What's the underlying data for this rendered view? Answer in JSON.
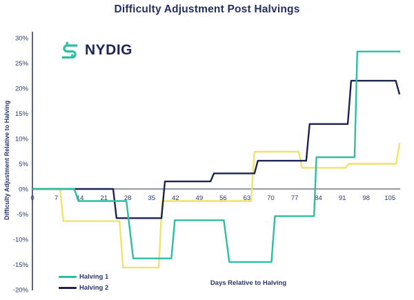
{
  "title": "Difficulty Adjustment Post Halvings",
  "logo": {
    "icon": "nydig-logo-icon",
    "text": "NYDIG"
  },
  "axes": {
    "y_label": "Difficulty Adjustment Relative to Halving",
    "x_label": "Days Relative to Halving",
    "y_tick_labels": [
      "30%",
      "25%",
      "20%",
      "15%",
      "10%",
      "5%",
      "0%",
      "-5%",
      "-10%",
      "-15%",
      "-20%"
    ],
    "x_tick_labels": [
      "0",
      "7",
      "14",
      "21",
      "28",
      "35",
      "42",
      "49",
      "56",
      "63",
      "70",
      "77",
      "84",
      "91",
      "98",
      "105"
    ]
  },
  "legend": [
    {
      "label": "Halving 1",
      "color": "#2bbfa2"
    },
    {
      "label": "Halving 2",
      "color": "#1b2150"
    }
  ],
  "colors": {
    "title_text": "#242e63",
    "tick_text": "#2a356e",
    "axis_line": "#47536b",
    "zero_line": "#4f5a70",
    "teal": "#2bbfa2",
    "navy": "#1b2150",
    "yellow": "#f1e26a",
    "background": "#ffffff"
  },
  "chart_data": {
    "type": "line",
    "line_style": "step",
    "title": "Difficulty Adjustment Post Halvings",
    "xlabel": "Days Relative to Halving",
    "ylabel": "Difficulty Adjustment Relative to Halving",
    "xlim": [
      0,
      108
    ],
    "ylim": [
      -20,
      30
    ],
    "x_ticks": [
      0,
      7,
      14,
      21,
      28,
      35,
      42,
      49,
      56,
      63,
      70,
      77,
      84,
      91,
      98,
      105
    ],
    "y_ticks": [
      30,
      25,
      20,
      15,
      10,
      5,
      0,
      -5,
      -10,
      -15,
      -20
    ],
    "grid": false,
    "legend_position": "bottom-left",
    "units": "percent",
    "series": [
      {
        "name": "Halving 1",
        "color": "#2bbfa2",
        "in_legend": true,
        "points": [
          [
            0,
            0
          ],
          [
            12.3,
            0
          ],
          [
            13.5,
            -2.4
          ],
          [
            27.6,
            -2.4
          ],
          [
            29.6,
            -13.8
          ],
          [
            40.8,
            -13.8
          ],
          [
            41.8,
            -6.2
          ],
          [
            56.2,
            -6.2
          ],
          [
            57.8,
            -14.5
          ],
          [
            70.2,
            -14.5
          ],
          [
            71.2,
            -5.4
          ],
          [
            82.7,
            -5.4
          ],
          [
            83.4,
            6.3
          ],
          [
            94.6,
            6.3
          ],
          [
            95.4,
            27.3
          ],
          [
            108,
            27.3
          ]
        ]
      },
      {
        "name": "Halving 2",
        "color": "#1b2150",
        "in_legend": true,
        "points": [
          [
            0,
            0
          ],
          [
            23.7,
            0
          ],
          [
            24.7,
            -5.8
          ],
          [
            37.9,
            -5.8
          ],
          [
            38.9,
            1.5
          ],
          [
            52.3,
            1.5
          ],
          [
            53.3,
            3.1
          ],
          [
            65.2,
            3.1
          ],
          [
            66.2,
            5.6
          ],
          [
            80.4,
            5.6
          ],
          [
            81.4,
            12.9
          ],
          [
            92.6,
            12.9
          ],
          [
            93.6,
            21.5
          ],
          [
            106.7,
            21.5
          ],
          [
            107.8,
            18.8
          ]
        ]
      },
      {
        "name": "unlabeled-yellow-series",
        "color": "#f1e26a",
        "in_legend": false,
        "points": [
          [
            0,
            0
          ],
          [
            8.1,
            0
          ],
          [
            9.1,
            -6.4
          ],
          [
            25.6,
            -6.4
          ],
          [
            26.6,
            -15.6
          ],
          [
            37.1,
            -15.6
          ],
          [
            38.1,
            -2.4
          ],
          [
            64.2,
            -2.4
          ],
          [
            65.2,
            7.4
          ],
          [
            78.2,
            7.4
          ],
          [
            79.2,
            4.2
          ],
          [
            91.9,
            4.2
          ],
          [
            92.9,
            5.0
          ],
          [
            106.8,
            5.0
          ],
          [
            107.8,
            9.0
          ],
          [
            108,
            9.0
          ]
        ]
      }
    ]
  }
}
